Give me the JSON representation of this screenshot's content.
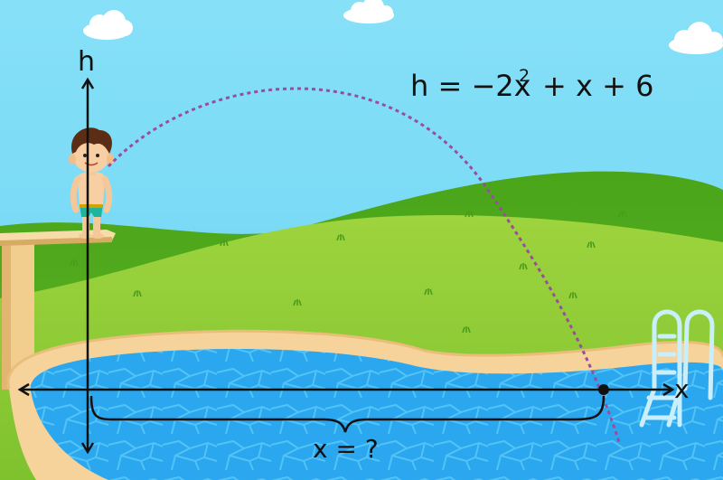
{
  "labels": {
    "h_axis": "h",
    "x_axis": "x",
    "equation_main": "h = −2x",
    "equation_exp": "2",
    "equation_rest": "+ x + 6",
    "x_question": "x = ?"
  },
  "colors": {
    "sky": "#7fdcf6",
    "hill_light": "#9fd23d",
    "hill_dark": "#58a81f",
    "pool_water": "#2aa7ef",
    "pool_rim": "#f4cf96",
    "trajectory": "#9a4d9f",
    "axis": "#111111"
  }
}
